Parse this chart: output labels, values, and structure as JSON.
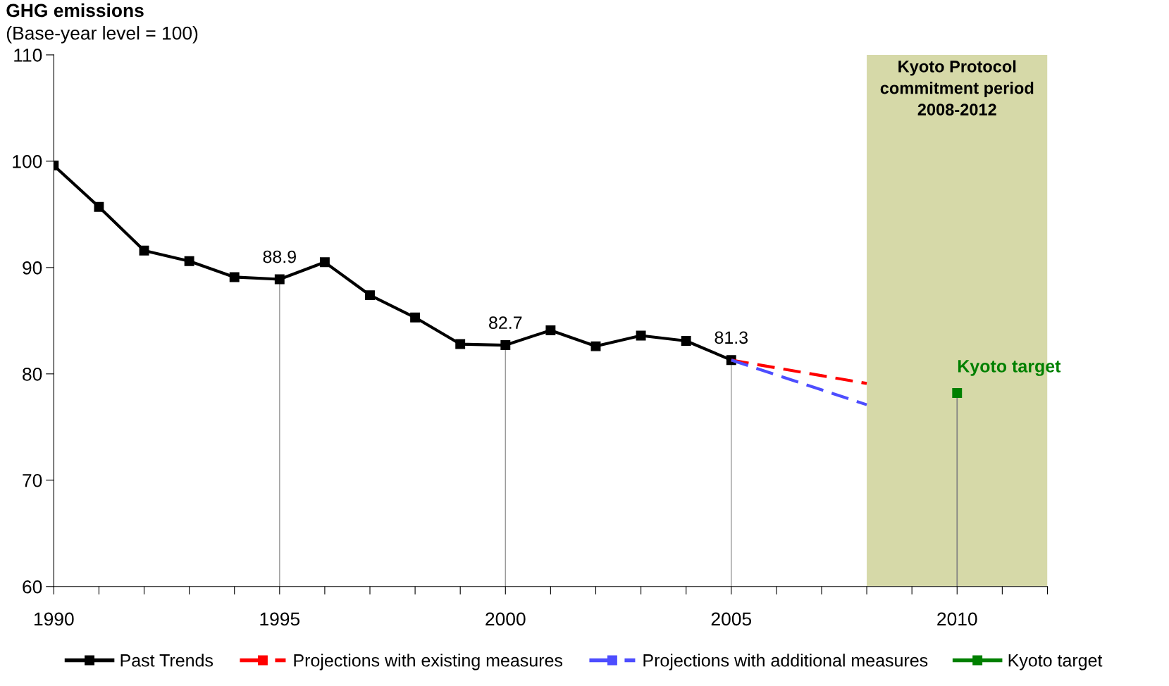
{
  "chart_data": {
    "type": "line",
    "title": "GHG emissions",
    "subtitle": "(Base-year level = 100)",
    "x": [
      1990,
      1991,
      1992,
      1993,
      1994,
      1995,
      1996,
      1997,
      1998,
      1999,
      2000,
      2001,
      2002,
      2003,
      2004,
      2005
    ],
    "series": [
      {
        "name": "Past Trends",
        "color": "#000000",
        "marker": "square",
        "line_style": "solid",
        "values": [
          99.6,
          95.7,
          91.6,
          90.6,
          89.1,
          88.9,
          90.5,
          87.4,
          85.3,
          82.8,
          82.7,
          84.1,
          82.6,
          83.6,
          83.1,
          81.3
        ],
        "value_labels": [
          null,
          null,
          null,
          null,
          null,
          "88.9",
          null,
          null,
          null,
          null,
          "82.7",
          null,
          null,
          null,
          null,
          "81.3"
        ]
      },
      {
        "name": "Projections with existing measures",
        "color": "#ff0000",
        "marker": "none",
        "line_style": "dashed",
        "x": [
          2005,
          2008
        ],
        "values": [
          81.3,
          79.1
        ]
      },
      {
        "name": "Projections with additional measures",
        "color": "#4d4dff",
        "marker": "none",
        "line_style": "dashed",
        "x": [
          2005,
          2008
        ],
        "values": [
          81.3,
          77.1
        ]
      },
      {
        "name": "Kyoto target",
        "color": "#008000",
        "marker": "square",
        "line_style": "solid",
        "x": [
          2010
        ],
        "values": [
          78.2
        ]
      }
    ],
    "annotations": [
      {
        "text": "Kyoto target",
        "x": 2010,
        "y": 78.2
      }
    ],
    "bands": [
      {
        "axis": "x",
        "from": 2008,
        "to": 2012,
        "label": "Kyoto Protocol\ncommitment period\n2008-2012",
        "color": "#d6d9a8"
      }
    ],
    "xlim": [
      1990,
      2012
    ],
    "xticks": [
      1990,
      {
        "value": 1991,
        "label": null
      },
      {
        "value": 1992,
        "label": null
      },
      {
        "value": 1993,
        "label": null
      },
      {
        "value": 1994,
        "label": null
      },
      1995,
      {
        "value": 1996,
        "label": null
      },
      {
        "value": 1997,
        "label": null
      },
      {
        "value": 1998,
        "label": null
      },
      {
        "value": 1999,
        "label": null
      },
      2000,
      {
        "value": 2001,
        "label": null
      },
      {
        "value": 2002,
        "label": null
      },
      {
        "value": 2003,
        "label": null
      },
      {
        "value": 2004,
        "label": null
      },
      2005,
      {
        "value": 2006,
        "label": null
      },
      {
        "value": 2007,
        "label": null
      },
      {
        "value": 2008,
        "label": null
      },
      {
        "value": 2009,
        "label": null
      },
      2010,
      {
        "value": 2011,
        "label": null
      },
      {
        "value": 2012,
        "label": null
      }
    ],
    "ylim": [
      60,
      110
    ],
    "yticks": [
      60,
      70,
      80,
      90,
      100,
      110
    ],
    "grid": false,
    "legend": "bottom"
  }
}
